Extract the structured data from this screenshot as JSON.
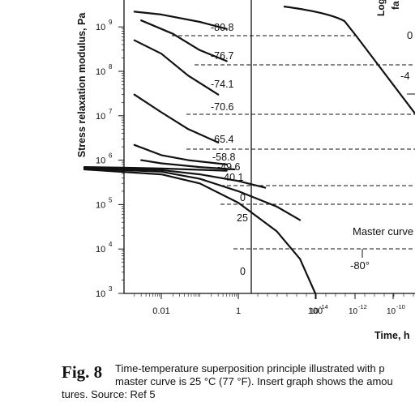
{
  "chart_data": [
    {
      "type": "line",
      "title": "",
      "ylabel": "Stress relaxation modulus, Pa",
      "xlabel": "",
      "yscale": "log",
      "xscale": "log",
      "ylim": [
        1000,
        3000000000
      ],
      "xlim_hours": [
        0.0001,
        1000
      ],
      "y_ticks": [
        {
          "value": 1000,
          "label": "10",
          "exp": "3"
        },
        {
          "value": 10000,
          "label": "10",
          "exp": "4"
        },
        {
          "value": 100000,
          "label": "10",
          "exp": "5"
        },
        {
          "value": 1000000,
          "label": "10",
          "exp": "6"
        },
        {
          "value": 10000000,
          "label": "10",
          "exp": "7"
        },
        {
          "value": 100000000,
          "label": "10",
          "exp": "8"
        },
        {
          "value": 1000000000,
          "label": "10",
          "exp": "9"
        }
      ],
      "x_ticks": [
        {
          "value": 0.01,
          "label": "0.01"
        },
        {
          "value": 1,
          "label": "1"
        },
        {
          "value": 100,
          "label": "100"
        }
      ],
      "temperature_labels": [
        "-80.8",
        "-76.7",
        "-74.1",
        "-70.6",
        "-65.4",
        "-58.8",
        "-49.6",
        "-40.1",
        "0",
        "25",
        "0"
      ],
      "series": [
        {
          "label": "-80.8",
          "points": [
            [
              0.002,
              2200000000
            ],
            [
              0.01,
              1900000000
            ],
            [
              0.1,
              1300000000
            ],
            [
              0.5,
              900000000
            ]
          ]
        },
        {
          "label": "-76.7",
          "points": [
            [
              0.003,
              1400000000
            ],
            [
              0.02,
              700000000
            ],
            [
              0.1,
              300000000
            ],
            [
              0.5,
              170000000
            ]
          ]
        },
        {
          "label": "-74.1",
          "points": [
            [
              0.002,
              500000000
            ],
            [
              0.01,
              250000000
            ],
            [
              0.05,
              80000000
            ],
            [
              0.3,
              30000000
            ]
          ]
        },
        {
          "label": "-70.6",
          "points": [
            [
              0.002,
              30000000
            ],
            [
              0.01,
              12000000
            ],
            [
              0.05,
              5000000
            ],
            [
              0.3,
              2500000
            ]
          ]
        },
        {
          "label": "-65.4",
          "points": [
            [
              0.002,
              2200000
            ],
            [
              0.01,
              1300000
            ],
            [
              0.05,
              1000000
            ],
            [
              0.5,
              800000
            ]
          ]
        },
        {
          "label": "-58.8",
          "points": [
            [
              0.003,
              1000000
            ],
            [
              0.01,
              850000
            ],
            [
              0.1,
              700000
            ],
            [
              0.8,
              620000
            ]
          ]
        },
        {
          "label": "-49.6",
          "points": [
            [
              0.0001,
              700000
            ],
            [
              0.001,
              680000
            ],
            [
              0.01,
              650000
            ],
            [
              0.5,
              580000
            ]
          ]
        },
        {
          "label": "-40.1",
          "points": [
            [
              0.0001,
              690000
            ],
            [
              0.01,
              600000
            ],
            [
              0.1,
              480000
            ],
            [
              1,
              340000
            ],
            [
              5,
              240000
            ]
          ]
        },
        {
          "label": "0",
          "points": [
            [
              0.0001,
              650000
            ],
            [
              0.01,
              550000
            ],
            [
              0.1,
              380000
            ],
            [
              1,
              200000
            ],
            [
              10,
              90000
            ],
            [
              40,
              45000
            ]
          ]
        },
        {
          "label": "25",
          "points": [
            [
              0.0001,
              620000
            ],
            [
              0.01,
              480000
            ],
            [
              0.1,
              300000
            ],
            [
              1,
              110000
            ],
            [
              10,
              25000
            ],
            [
              40,
              6000
            ],
            [
              100,
              1000
            ]
          ]
        }
      ]
    },
    {
      "type": "line",
      "title": "",
      "xlabel": "Time, h",
      "xscale": "log",
      "x_ticks": [
        {
          "label": "10",
          "exp": "-14"
        },
        {
          "label": "10",
          "exp": "-12"
        },
        {
          "label": "10",
          "exp": "-10"
        }
      ],
      "annotations": [
        "Master curve",
        "-80°"
      ],
      "right_labels": [
        "0",
        "-4"
      ],
      "inset_ylabel_fragments": [
        "Log",
        "fa"
      ]
    }
  ],
  "caption": {
    "label": "Fig. 8",
    "line1": "Time-temperature superposition principle illustrated with p",
    "line2": "master curve is 25 °C (77 °F). Insert graph shows the amou",
    "line3": "tures. Source: Ref 5"
  }
}
